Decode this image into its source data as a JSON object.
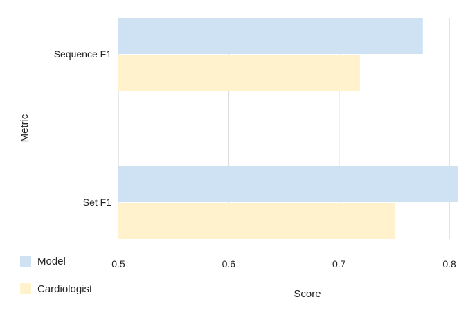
{
  "chart_data": {
    "type": "bar",
    "orientation": "horizontal",
    "title": "",
    "xlabel": "Score",
    "ylabel": "Metric",
    "xlim": [
      0.5,
      0.81
    ],
    "xticks": [
      0.5,
      0.6,
      0.7,
      0.8
    ],
    "xtick_labels": [
      "0.5",
      "0.6",
      "0.7",
      "0.8"
    ],
    "grid": "vertical",
    "legend_position": "bottom-left",
    "categories": [
      "Sequence F1",
      "Set F1"
    ],
    "series": [
      {
        "name": "Model",
        "color": "#cfe2f3",
        "values": [
          0.776,
          0.808
        ]
      },
      {
        "name": "Cardiologist",
        "color": "#fff2cc",
        "values": [
          0.719,
          0.751
        ]
      }
    ]
  }
}
